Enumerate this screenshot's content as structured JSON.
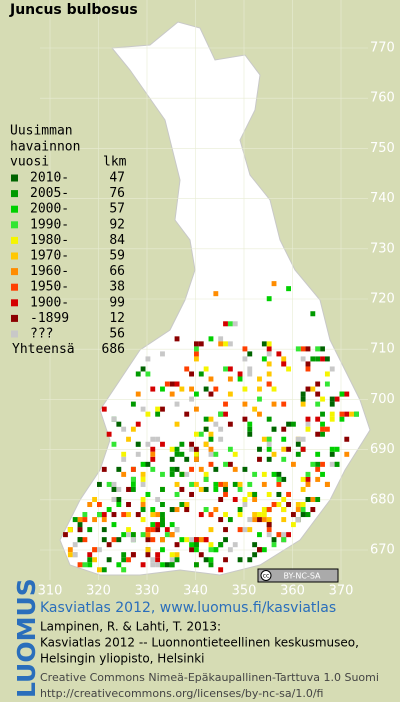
{
  "title": "Juncus bulbosus",
  "legend": {
    "heading": [
      "Uusimman",
      "havainnon"
    ],
    "col_year": "vuosi",
    "col_count": "lkm",
    "items": [
      {
        "label": "2010-",
        "count": 47,
        "color": "#006400"
      },
      {
        "label": "2005-",
        "count": 76,
        "color": "#009a00"
      },
      {
        "label": "2000-",
        "count": 57,
        "color": "#00d000"
      },
      {
        "label": "1990-",
        "count": 92,
        "color": "#33e633"
      },
      {
        "label": "1980-",
        "count": 84,
        "color": "#f5f500"
      },
      {
        "label": "1970-",
        "count": 59,
        "color": "#ffc800"
      },
      {
        "label": "1960-",
        "count": 66,
        "color": "#ff8c00"
      },
      {
        "label": "1950-",
        "count": 38,
        "color": "#ff4000"
      },
      {
        "label": "1900-",
        "count": 99,
        "color": "#d40000"
      },
      {
        "label": "-1899",
        "count": 12,
        "color": "#8b0000"
      },
      {
        "label": "???",
        "count": 56,
        "color": "#c8c8c8"
      }
    ],
    "total_label": "Yhteensä",
    "total": 686
  },
  "map": {
    "xticks": [
      310,
      320,
      330,
      340,
      350,
      360,
      370
    ],
    "yticks": [
      670,
      680,
      690,
      700,
      710,
      720,
      730,
      740,
      750,
      760,
      770
    ]
  },
  "badge": {
    "cc": "cc",
    "license": "BY-NC-SA"
  },
  "footer": {
    "logo": "LUOMUS",
    "atlas": "Kasviatlas 2012, www.luomus.fi/kasviatlas",
    "citation": [
      "Lampinen, R. & Lahti, T. 2013:",
      "Kasviatlas 2012 -- Luonnontieteellinen keskusmuseo,",
      "Helsingin yliopisto, Helsinki"
    ],
    "license": [
      "Creative Commons Nimeä-Epäkaupallinen-Tarttuva 1.0 Suomi",
      "http://creativecommons.org/licenses/by-nc-sa/1.0/fi"
    ]
  }
}
